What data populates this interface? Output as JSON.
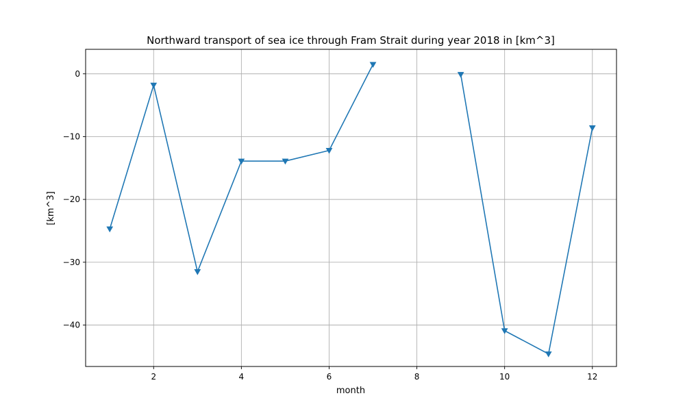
{
  "chart_data": {
    "type": "line",
    "title": "Northward transport of sea ice through Fram Strait during year 2018 in [km^3]",
    "xlabel": "month",
    "ylabel": "[km^3]",
    "xlim": [
      0.45,
      12.55
    ],
    "ylim": [
      -46.6,
      3.9
    ],
    "xticks": [
      2,
      4,
      6,
      8,
      10,
      12
    ],
    "xtick_labels": [
      "2",
      "4",
      "6",
      "8",
      "10",
      "12"
    ],
    "yticks": [
      0,
      -10,
      -20,
      -30,
      -40
    ],
    "ytick_labels": [
      "0",
      "−10",
      "−20",
      "−30",
      "−40"
    ],
    "grid": true,
    "marker": "triangle-down",
    "series": [
      {
        "color": "#1f77b4",
        "x": [
          1,
          2,
          3,
          4,
          5,
          6,
          7,
          8,
          9,
          10,
          11,
          12
        ],
        "y": [
          -24.7,
          -1.8,
          -31.5,
          -13.9,
          -13.9,
          -12.2,
          1.5,
          null,
          -0.1,
          -40.9,
          -44.6,
          -8.6
        ]
      }
    ]
  }
}
